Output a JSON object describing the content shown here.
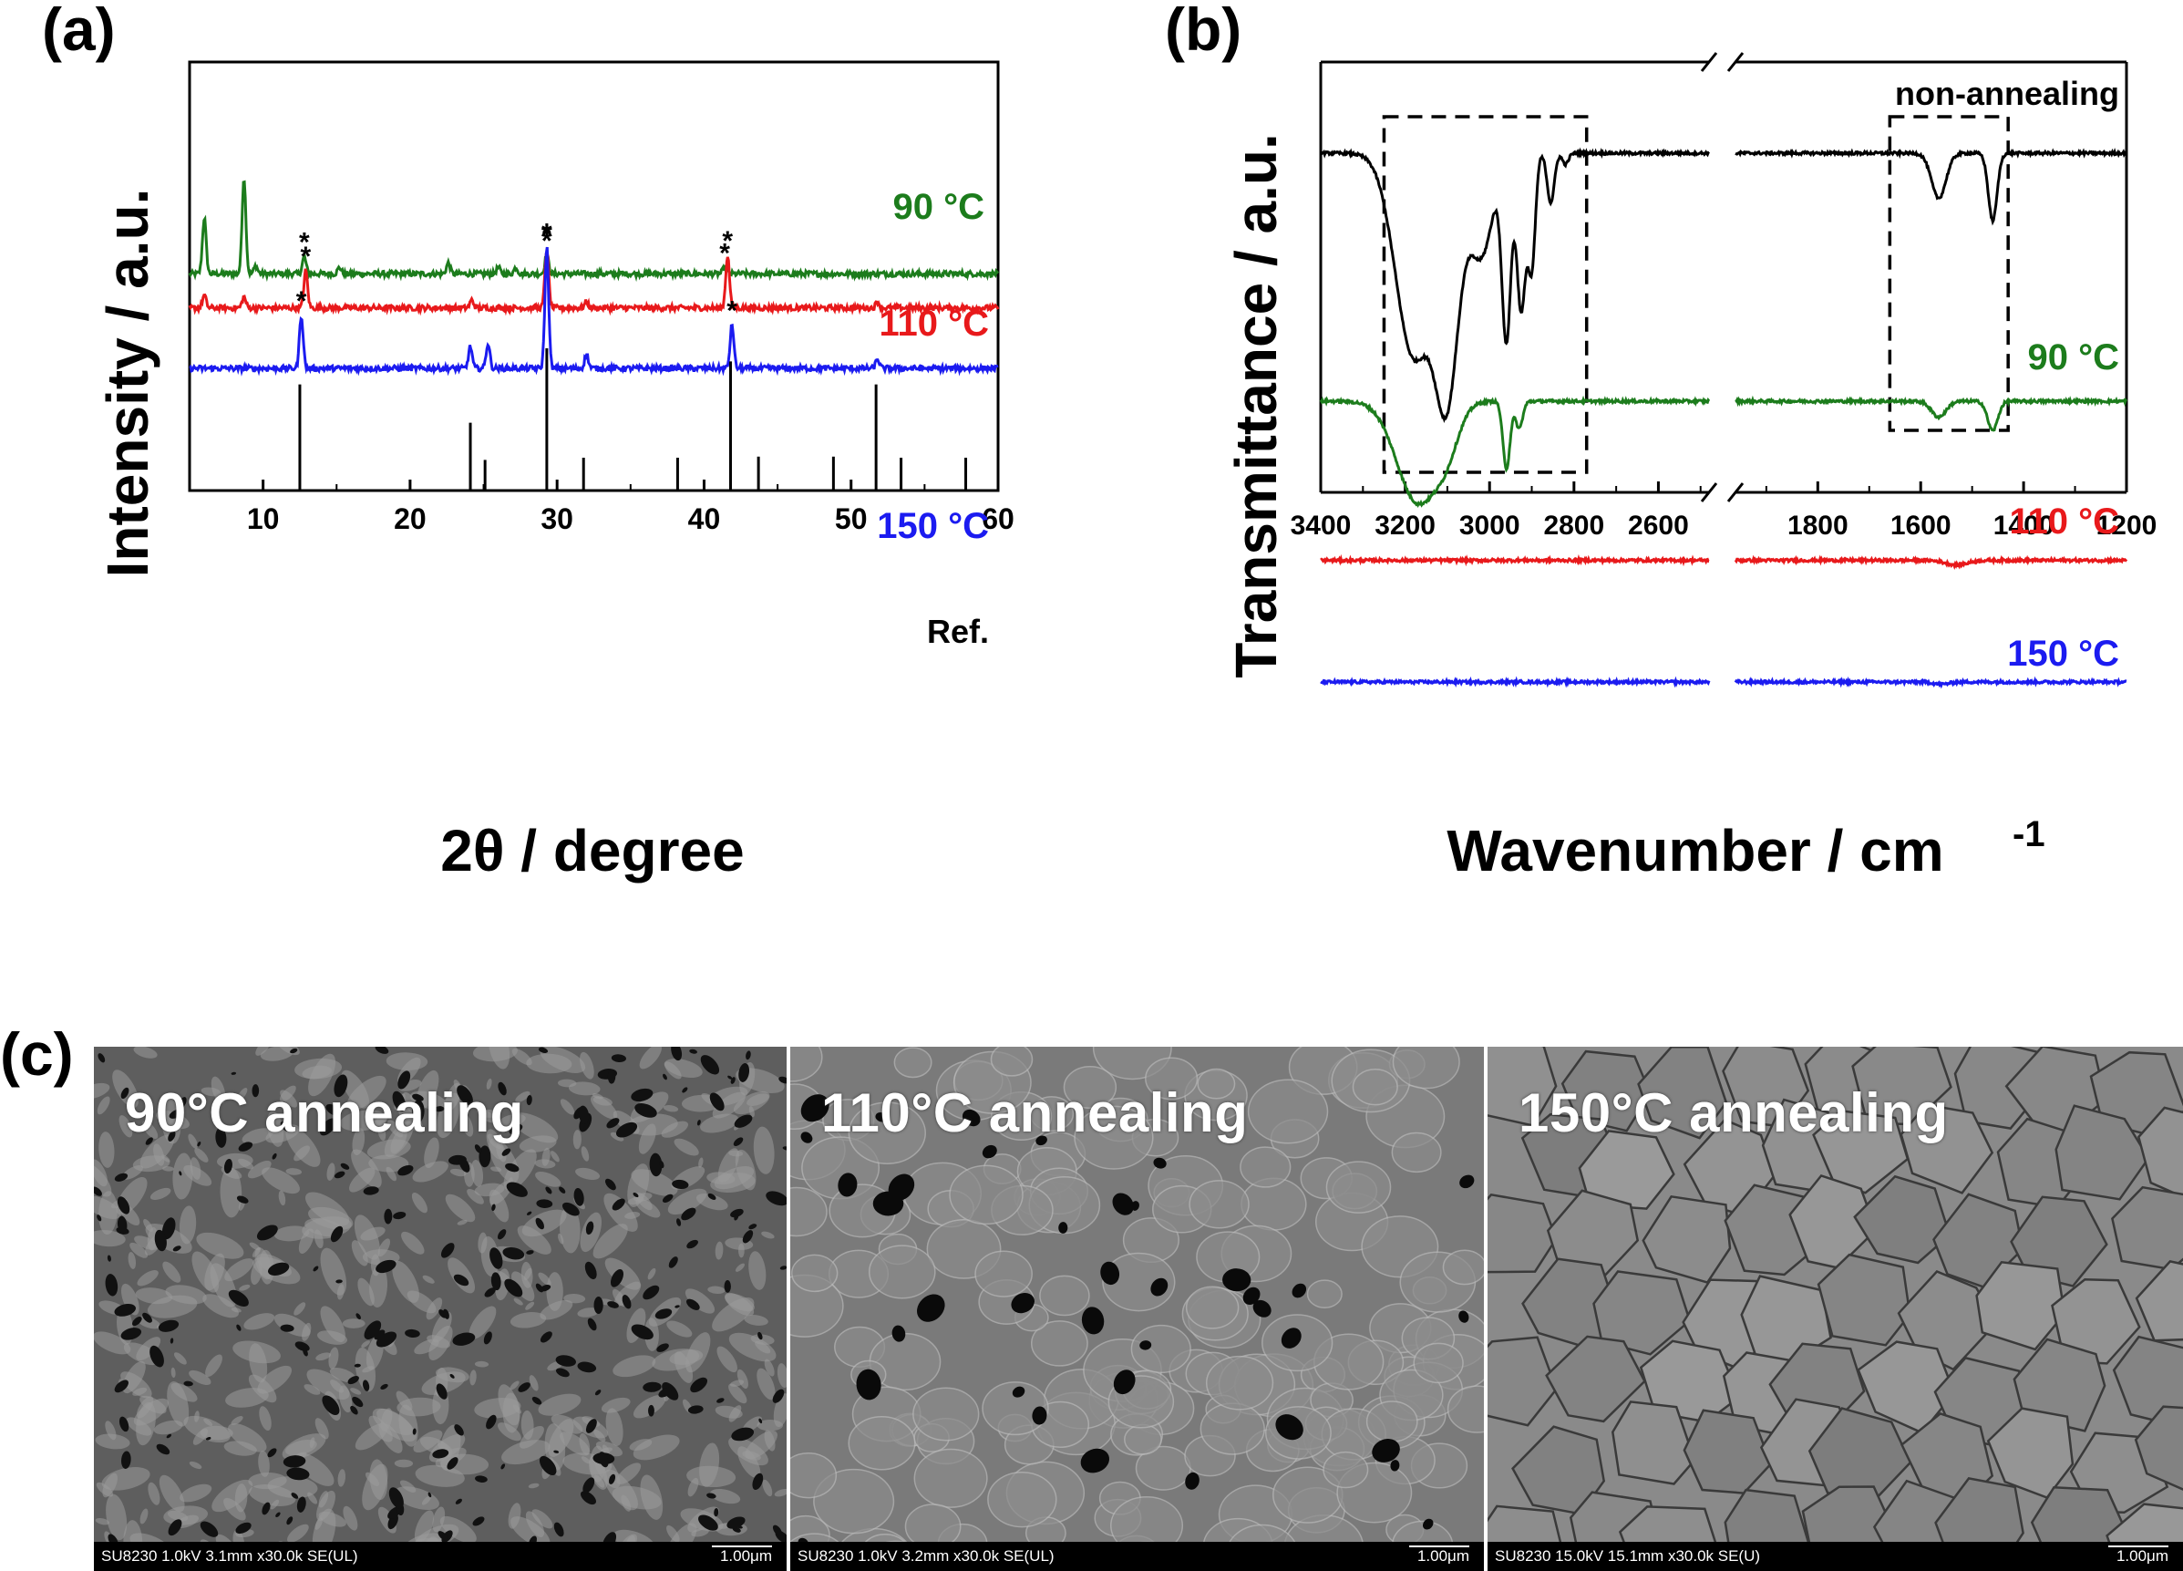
{
  "panels": {
    "a_label": "(a)",
    "b_label": "(b)",
    "c_label": "(c)"
  },
  "chart_data": [
    {
      "id": "a",
      "type": "line",
      "title": "",
      "xlabel": "2θ / degree",
      "ylabel": "Intensity / a.u.",
      "xlim": [
        5,
        60
      ],
      "xticks": [
        "10",
        "20",
        "30",
        "40",
        "50",
        "60"
      ],
      "yticks": [],
      "series": [
        {
          "name": "90 °C",
          "color": "#1c7c1c",
          "baseline": 0.61,
          "peaks": [
            [
              6.0,
              0.36
            ],
            [
              8.7,
              0.62
            ],
            [
              9.5,
              0.05
            ],
            [
              12.8,
              0.11
            ],
            [
              15.2,
              0.04
            ],
            [
              22.6,
              0.07
            ],
            [
              26.0,
              0.04
            ],
            [
              27.2,
              0.04
            ],
            [
              29.3,
              0.12
            ],
            [
              41.4,
              0.04
            ]
          ],
          "star_peaks": [
            12.8,
            29.3,
            41.4
          ]
        },
        {
          "name": "110 °C",
          "color": "#e8191b",
          "baseline": 0.39,
          "peaks": [
            [
              6.0,
              0.08
            ],
            [
              8.7,
              0.07
            ],
            [
              12.9,
              0.24
            ],
            [
              24.2,
              0.05
            ],
            [
              29.3,
              0.38
            ],
            [
              32.0,
              0.04
            ],
            [
              41.6,
              0.34
            ],
            [
              51.8,
              0.04
            ]
          ],
          "star_peaks": [
            12.9,
            29.3,
            41.6
          ]
        },
        {
          "name": "150 °C",
          "color": "#1b1bf0",
          "baseline": 0.0,
          "peaks": [
            [
              12.6,
              0.34
            ],
            [
              24.1,
              0.14
            ],
            [
              25.3,
              0.16
            ],
            [
              29.3,
              0.78
            ],
            [
              32.0,
              0.09
            ],
            [
              41.9,
              0.28
            ],
            [
              51.8,
              0.06
            ]
          ],
          "star_peaks": [
            12.6,
            29.3,
            41.9
          ]
        }
      ],
      "reference": {
        "name": "Ref.",
        "color": "#000000",
        "lines": [
          [
            12.5,
            0.97
          ],
          [
            24.1,
            0.62
          ],
          [
            25.1,
            0.28
          ],
          [
            29.3,
            1.3
          ],
          [
            31.8,
            0.3
          ],
          [
            38.2,
            0.3
          ],
          [
            41.8,
            1.18
          ],
          [
            43.7,
            0.31
          ],
          [
            48.8,
            0.31
          ],
          [
            51.7,
            0.97
          ],
          [
            53.4,
            0.3
          ],
          [
            57.8,
            0.3
          ]
        ]
      }
    },
    {
      "id": "b",
      "type": "line",
      "title": "",
      "xlabel": "Wavenumber / cm",
      "xlabel_superscript": "-1",
      "ylabel": "Transmittance / a.u.",
      "xlim_left": [
        3400,
        2480
      ],
      "xlim_right": [
        1960,
        1200
      ],
      "xticks_left": [
        "3400",
        "3200",
        "3000",
        "2800",
        "2600"
      ],
      "xticks_right": [
        "1800",
        "1600",
        "1400",
        "1200"
      ],
      "series": [
        {
          "name": "non-annealing",
          "color": "#000000",
          "baseline": 1.0,
          "dips": [
            [
              3180,
              0.9,
              60
            ],
            [
              3100,
              1.0,
              40
            ],
            [
              3020,
              0.45,
              40
            ],
            [
              2960,
              0.8,
              15
            ],
            [
              2925,
              0.7,
              15
            ],
            [
              2900,
              0.5,
              12
            ],
            [
              2855,
              0.22,
              12
            ],
            [
              2820,
              0.05,
              10
            ],
            [
              1565,
              0.2,
              20
            ],
            [
              1460,
              0.3,
              12
            ]
          ],
          "box_left": [
            3250,
            2770
          ],
          "box_right": [
            1660,
            1430
          ]
        },
        {
          "name": "90 °C",
          "color": "#1c7c1c",
          "baseline": 0.47,
          "dips": [
            [
              3170,
              0.45,
              70
            ],
            [
              3100,
              0.14,
              40
            ],
            [
              2960,
              0.3,
              12
            ],
            [
              2930,
              0.12,
              12
            ],
            [
              1565,
              0.07,
              20
            ],
            [
              1460,
              0.13,
              14
            ]
          ]
        },
        {
          "name": "110 °C",
          "color": "#e8191b",
          "baseline": 0.13,
          "dips": [
            [
              1530,
              0.02,
              30
            ]
          ]
        },
        {
          "name": "150 °C",
          "color": "#1b1bf0",
          "baseline": -0.13,
          "dips": [
            [
              1560,
              0.01,
              20
            ]
          ]
        }
      ]
    }
  ],
  "sem_images": [
    {
      "title": "90°C annealing",
      "info": "SU8230 1.0kV 3.1mm x30.0k SE(UL)",
      "scale": "1.00μm"
    },
    {
      "title": "110°C annealing",
      "info": "SU8230 1.0kV 3.2mm x30.0k SE(UL)",
      "scale": "1.00μm"
    },
    {
      "title": "150°C annealing",
      "info": "SU8230 15.0kV 15.1mm x30.0k SE(U)",
      "scale": "1.00μm"
    }
  ]
}
